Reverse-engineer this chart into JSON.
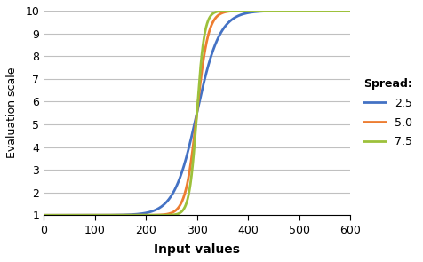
{
  "title": "",
  "xlabel": "Input values",
  "ylabel": "Evaluation scale",
  "xlim": [
    0,
    600
  ],
  "ylim": [
    1,
    10
  ],
  "xticks": [
    0,
    100,
    200,
    300,
    400,
    500,
    600
  ],
  "yticks": [
    1,
    2,
    3,
    4,
    5,
    6,
    7,
    8,
    9,
    10
  ],
  "legend_title": "Spread:",
  "series": [
    {
      "label": "2.5",
      "spread": 2.5,
      "color": "#4472C4",
      "midpoint": 300
    },
    {
      "label": "5.0",
      "spread": 5.0,
      "color": "#ED7D31",
      "midpoint": 300
    },
    {
      "label": "7.5",
      "spread": 7.5,
      "color": "#9DC13B",
      "midpoint": 300
    }
  ],
  "background_color": "#FFFFFF",
  "grid_color": "#C0C0C0",
  "figsize": [
    4.76,
    2.95
  ],
  "dpi": 100
}
